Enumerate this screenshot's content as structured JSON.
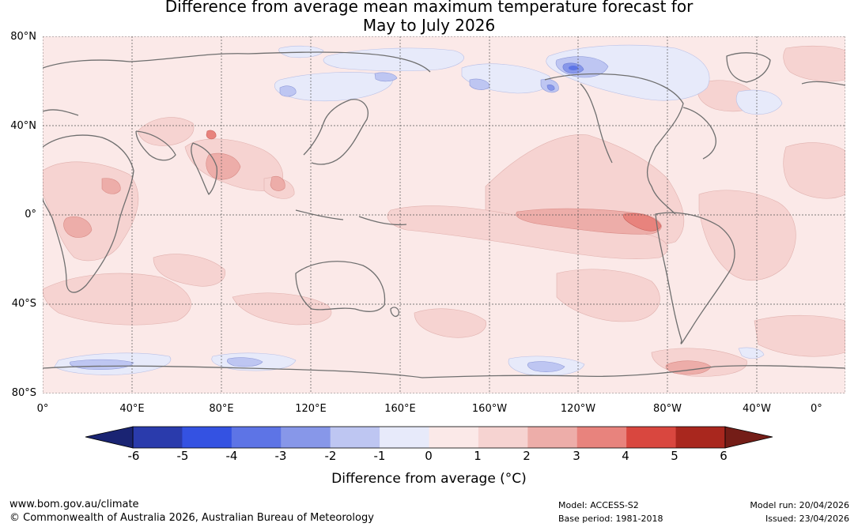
{
  "title": {
    "line1": "Difference from average mean maximum temperature forecast for",
    "line2": "May to July 2026"
  },
  "map": {
    "lat_labels": [
      "80°N",
      "40°N",
      "0°",
      "40°S",
      "80°S"
    ],
    "lon_labels": [
      "0°",
      "40°E",
      "80°E",
      "120°E",
      "160°E",
      "160°W",
      "120°W",
      "80°W",
      "40°W",
      "0°"
    ]
  },
  "colorbar": {
    "ticks": [
      "-6",
      "-5",
      "-4",
      "-3",
      "-2",
      "-1",
      "0",
      "1",
      "2",
      "3",
      "4",
      "5",
      "6"
    ],
    "low_extend_color": "#1a2473",
    "high_extend_color": "#741d17",
    "colors": [
      "#2a3bac",
      "#3452e2",
      "#5d74e6",
      "#8797e9",
      "#bec6f2",
      "#e7eafa",
      "#fbe9e8",
      "#f6d3d1",
      "#edada9",
      "#e8837d",
      "#d9473f",
      "#a9271e"
    ],
    "label": "Difference from average (°C)"
  },
  "footer": {
    "website": "www.bom.gov.au/climate",
    "copyright": "© Commonwealth of Australia 2026, Australian Bureau of Meteorology",
    "model": "Model: ACCESS-S2",
    "base_period": "Base period: 1981-2018",
    "model_run": "Model run: 20/04/2026",
    "issued": "Issued: 23/04/2026"
  }
}
